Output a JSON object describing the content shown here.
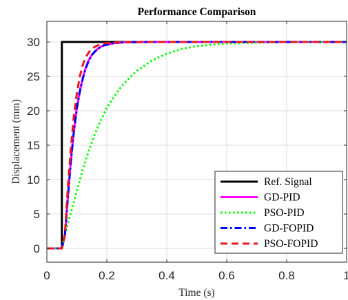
{
  "chart_data": {
    "type": "line",
    "title": "Performance Comparison",
    "xlabel": "Time (s)",
    "ylabel": "Displacement (mm)",
    "xlim": [
      0,
      1
    ],
    "ylim": [
      -2,
      33
    ],
    "xticks": [
      0,
      0.2,
      0.4,
      0.6,
      0.8,
      1
    ],
    "xtick_labels": [
      "0",
      "0.2",
      "0.4",
      "0.6",
      "0.8",
      "1"
    ],
    "yticks": [
      0,
      5,
      10,
      15,
      20,
      25,
      30
    ],
    "ytick_labels": [
      "0",
      "5",
      "10",
      "15",
      "20",
      "25",
      "30"
    ],
    "grid": true,
    "legend_position": "bottom-right",
    "series": [
      {
        "name": "Ref. Signal",
        "color": "#000000",
        "style": "solid",
        "x": [
          0,
          0.05,
          0.05,
          1
        ],
        "y": [
          0,
          0,
          30,
          30
        ]
      },
      {
        "name": "GD-PID",
        "color": "#ff00ff",
        "style": "solid",
        "x": [
          0,
          0.05,
          0.06,
          0.07,
          0.08,
          0.09,
          0.1,
          0.11,
          0.12,
          0.13,
          0.14,
          0.15,
          0.16,
          0.17,
          0.18,
          0.19,
          0.2,
          0.22,
          0.24,
          0.26,
          0.28,
          0.3,
          0.35,
          0.4,
          0.5,
          0.6,
          0.8,
          1
        ],
        "y": [
          0,
          0,
          1.8,
          7.4,
          12.7,
          17,
          20.4,
          22.9,
          24.8,
          26.3,
          27.4,
          28.1,
          28.6,
          29,
          29.3,
          29.5,
          29.6,
          29.8,
          29.9,
          29.95,
          29.97,
          29.98,
          30,
          30,
          30,
          30,
          30,
          30
        ]
      },
      {
        "name": "PSO-PID",
        "color": "#00ff00",
        "style": "dotted",
        "x": [
          0,
          0.05,
          0.06,
          0.07,
          0.08,
          0.09,
          0.1,
          0.12,
          0.14,
          0.16,
          0.18,
          0.2,
          0.22,
          0.25,
          0.28,
          0.3,
          0.35,
          0.4,
          0.45,
          0.5,
          0.55,
          0.6,
          0.7,
          0.8,
          0.9,
          1
        ],
        "y": [
          0,
          0,
          1.9,
          3.6,
          5.2,
          6.7,
          8.3,
          11.5,
          14.2,
          16.6,
          18.6,
          20.4,
          21.8,
          23.6,
          25,
          25.8,
          27.3,
          28.3,
          29,
          29.4,
          29.6,
          29.8,
          29.9,
          30,
          30,
          30
        ]
      },
      {
        "name": "GD-FOPID",
        "color": "#0000ff",
        "style": "dashdot",
        "x": [
          0,
          0.05,
          0.06,
          0.07,
          0.08,
          0.09,
          0.1,
          0.11,
          0.12,
          0.13,
          0.14,
          0.15,
          0.16,
          0.17,
          0.18,
          0.19,
          0.2,
          0.22,
          0.24,
          0.26,
          0.28,
          0.3,
          0.35,
          0.4,
          0.5,
          0.6,
          0.8,
          1
        ],
        "y": [
          0,
          0,
          1.8,
          7.3,
          12.6,
          16.9,
          20.3,
          22.8,
          24.7,
          26.2,
          27.3,
          28.1,
          28.6,
          29,
          29.3,
          29.5,
          29.6,
          29.8,
          29.9,
          29.95,
          29.97,
          29.98,
          30,
          30,
          30,
          30,
          30,
          30
        ]
      },
      {
        "name": "PSO-FOPID",
        "color": "#e8141e",
        "style": "dashed",
        "x": [
          0,
          0.05,
          0.06,
          0.07,
          0.08,
          0.09,
          0.1,
          0.11,
          0.12,
          0.13,
          0.14,
          0.15,
          0.16,
          0.17,
          0.18,
          0.19,
          0.2,
          0.22,
          0.24,
          0.26,
          0.3,
          0.35,
          0.4,
          0.5,
          0.6,
          0.8,
          1
        ],
        "y": [
          0,
          0,
          2,
          8.8,
          14.5,
          19.2,
          22.5,
          25,
          26.7,
          27.8,
          28.5,
          29,
          29.3,
          29.5,
          29.7,
          29.8,
          29.85,
          29.9,
          29.95,
          29.97,
          29.99,
          30,
          30,
          30,
          30,
          30,
          30
        ]
      }
    ]
  }
}
